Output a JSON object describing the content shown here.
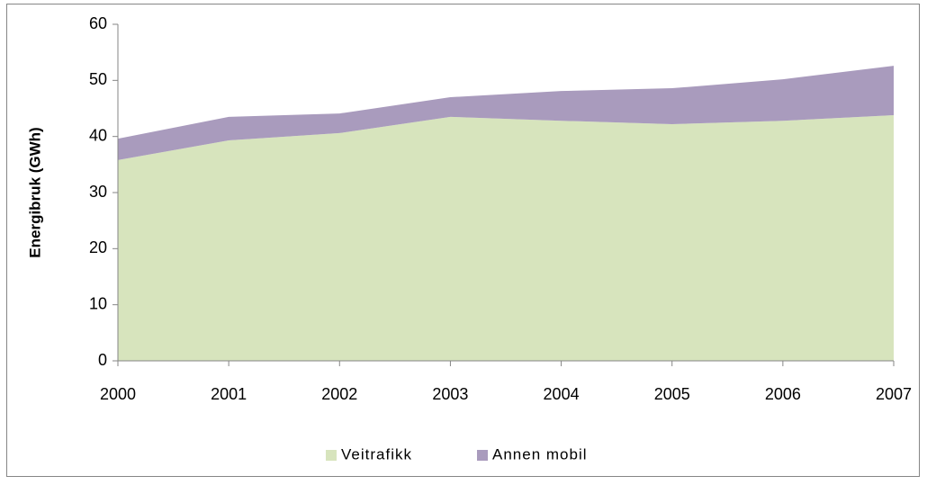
{
  "chart_data": {
    "type": "stacked_area",
    "y_label": "Energibruk (GWh)",
    "categories": [
      "2000",
      "2001",
      "2002",
      "2003",
      "2004",
      "2005",
      "2006",
      "2007"
    ],
    "series": [
      {
        "name": "Veitrafikk",
        "color": "#d7e4bd",
        "values": [
          35.8,
          39.3,
          40.6,
          43.5,
          42.8,
          42.2,
          42.8,
          43.8
        ]
      },
      {
        "name": "Annen mobil",
        "color": "#a99bbd",
        "values": [
          3.8,
          4.2,
          3.5,
          3.5,
          5.3,
          6.4,
          7.4,
          8.8
        ]
      }
    ],
    "ylim": [
      0,
      60
    ],
    "yticks": [
      0,
      10,
      20,
      30,
      40,
      50,
      60
    ],
    "grid": false,
    "legend": "bottom"
  }
}
